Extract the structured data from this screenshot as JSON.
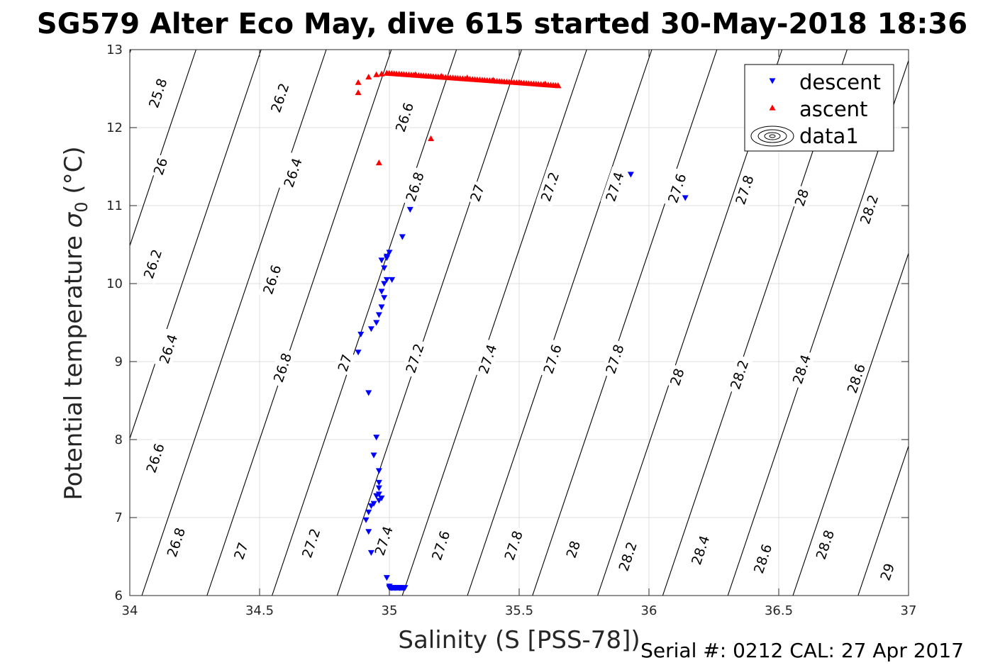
{
  "chart_data": {
    "type": "scatter",
    "title": "SG579 Alter Eco May, dive 615 started 30-May-2018 18:36",
    "xlabel": "Salinity (S [PSS-78])",
    "ylabel_main": "Potential temperature ",
    "ylabel_sigma": "σ",
    "ylabel_sub": "0",
    "ylabel_unit": " (°C)",
    "xlim": [
      34,
      37
    ],
    "ylim": [
      6,
      13
    ],
    "xticks": [
      34,
      34.5,
      35,
      35.5,
      36,
      36.5,
      37
    ],
    "xtick_labels": [
      "34",
      "34.5",
      "35",
      "35.5",
      "36",
      "36.5",
      "37"
    ],
    "yticks": [
      6,
      7,
      8,
      9,
      10,
      11,
      12,
      13
    ],
    "ytick_labels": [
      "6",
      "7",
      "8",
      "9",
      "10",
      "11",
      "12",
      "13"
    ],
    "grid": true,
    "legend_position": "top-right",
    "footer": "Serial #: 0212  CAL: 27 Apr 2017",
    "contour_labels": [
      {
        "text": "25.8",
        "s": 34.11,
        "t": 12.44
      },
      {
        "text": "26",
        "s": 34.12,
        "t": 11.5
      },
      {
        "text": "26.2",
        "s": 34.09,
        "t": 10.25
      },
      {
        "text": "26.4",
        "s": 34.15,
        "t": 9.16
      },
      {
        "text": "26.6",
        "s": 34.1,
        "t": 7.76
      },
      {
        "text": "26.8",
        "s": 34.18,
        "t": 6.68
      },
      {
        "text": "26.2",
        "s": 34.58,
        "t": 12.38
      },
      {
        "text": "26.4",
        "s": 34.63,
        "t": 11.42
      },
      {
        "text": "26.6",
        "s": 34.55,
        "t": 10.05
      },
      {
        "text": "26.8",
        "s": 34.59,
        "t": 8.92
      },
      {
        "text": "27",
        "s": 34.43,
        "t": 6.57
      },
      {
        "text": "26.6",
        "s": 35.06,
        "t": 12.13
      },
      {
        "text": "26.8",
        "s": 35.1,
        "t": 11.24
      },
      {
        "text": "27",
        "s": 34.83,
        "t": 8.98
      },
      {
        "text": "27.2",
        "s": 34.7,
        "t": 6.67
      },
      {
        "text": "27",
        "s": 35.34,
        "t": 11.16
      },
      {
        "text": "27.2",
        "s": 35.1,
        "t": 9.04
      },
      {
        "text": "27.4",
        "s": 34.98,
        "t": 6.7
      },
      {
        "text": "27.2",
        "s": 35.62,
        "t": 11.24
      },
      {
        "text": "27.4",
        "s": 35.38,
        "t": 9.03
      },
      {
        "text": "27.6",
        "s": 35.2,
        "t": 6.64
      },
      {
        "text": "27.4",
        "s": 35.87,
        "t": 11.24
      },
      {
        "text": "27.6",
        "s": 35.63,
        "t": 9.03
      },
      {
        "text": "27.8",
        "s": 35.48,
        "t": 6.64
      },
      {
        "text": "27.6",
        "s": 36.11,
        "t": 11.22
      },
      {
        "text": "27.8",
        "s": 35.87,
        "t": 9.03
      },
      {
        "text": "28",
        "s": 35.71,
        "t": 6.59
      },
      {
        "text": "27.8",
        "s": 36.37,
        "t": 11.2
      },
      {
        "text": "28",
        "s": 36.11,
        "t": 8.8
      },
      {
        "text": "28.2",
        "s": 35.92,
        "t": 6.5
      },
      {
        "text": "28",
        "s": 36.59,
        "t": 11.1
      },
      {
        "text": "28.2",
        "s": 36.35,
        "t": 8.83
      },
      {
        "text": "28.4",
        "s": 36.2,
        "t": 6.58
      },
      {
        "text": "28.2",
        "s": 36.85,
        "t": 10.95
      },
      {
        "text": "28.4",
        "s": 36.59,
        "t": 8.9
      },
      {
        "text": "28.6",
        "s": 36.44,
        "t": 6.47
      },
      {
        "text": "28.6",
        "s": 36.8,
        "t": 8.78
      },
      {
        "text": "28.8",
        "s": 36.68,
        "t": 6.65
      },
      {
        "text": "29",
        "s": 36.92,
        "t": 6.3
      }
    ],
    "series": [
      {
        "name": "descent",
        "marker": "triangle-down",
        "color": "#0000ff",
        "x": [
          34.88,
          34.89,
          34.93,
          34.95,
          34.96,
          34.97,
          34.98,
          34.97,
          34.98,
          34.99,
          34.98,
          34.97,
          34.99,
          35.0,
          34.99,
          35.01,
          35.05,
          35.08,
          34.92,
          34.95,
          34.94,
          34.96,
          34.96,
          34.96,
          34.96,
          34.97,
          34.96,
          34.95,
          34.94,
          34.93,
          34.92,
          34.91,
          34.92,
          34.93,
          34.99,
          35.0,
          35.01,
          35.02,
          35.04,
          35.06,
          35.93,
          36.14
        ],
        "y": [
          9.12,
          9.35,
          9.42,
          9.5,
          9.6,
          9.7,
          9.82,
          9.9,
          10.0,
          10.05,
          10.2,
          10.3,
          10.33,
          10.4,
          10.35,
          10.05,
          10.6,
          10.95,
          8.6,
          8.03,
          7.8,
          7.6,
          7.45,
          7.38,
          7.3,
          7.25,
          7.22,
          7.28,
          7.18,
          7.15,
          7.07,
          6.97,
          6.82,
          6.55,
          6.23,
          6.12,
          6.1,
          6.1,
          6.1,
          6.1,
          11.4,
          11.1
        ]
      },
      {
        "name": "ascent",
        "marker": "triangle-up",
        "color": "#ff0000",
        "x": [
          34.88,
          34.88,
          34.92,
          34.95,
          34.97,
          34.99,
          35.1,
          35.2,
          35.3,
          35.4,
          35.5,
          35.6,
          35.65,
          34.96,
          35.16
        ],
        "y": [
          12.58,
          12.45,
          12.65,
          12.68,
          12.69,
          12.7,
          12.68,
          12.66,
          12.64,
          12.61,
          12.58,
          12.56,
          12.54,
          11.55,
          11.86
        ]
      },
      {
        "name": "data1",
        "marker": "contour",
        "color": "#000000",
        "x": [],
        "y": []
      }
    ]
  }
}
